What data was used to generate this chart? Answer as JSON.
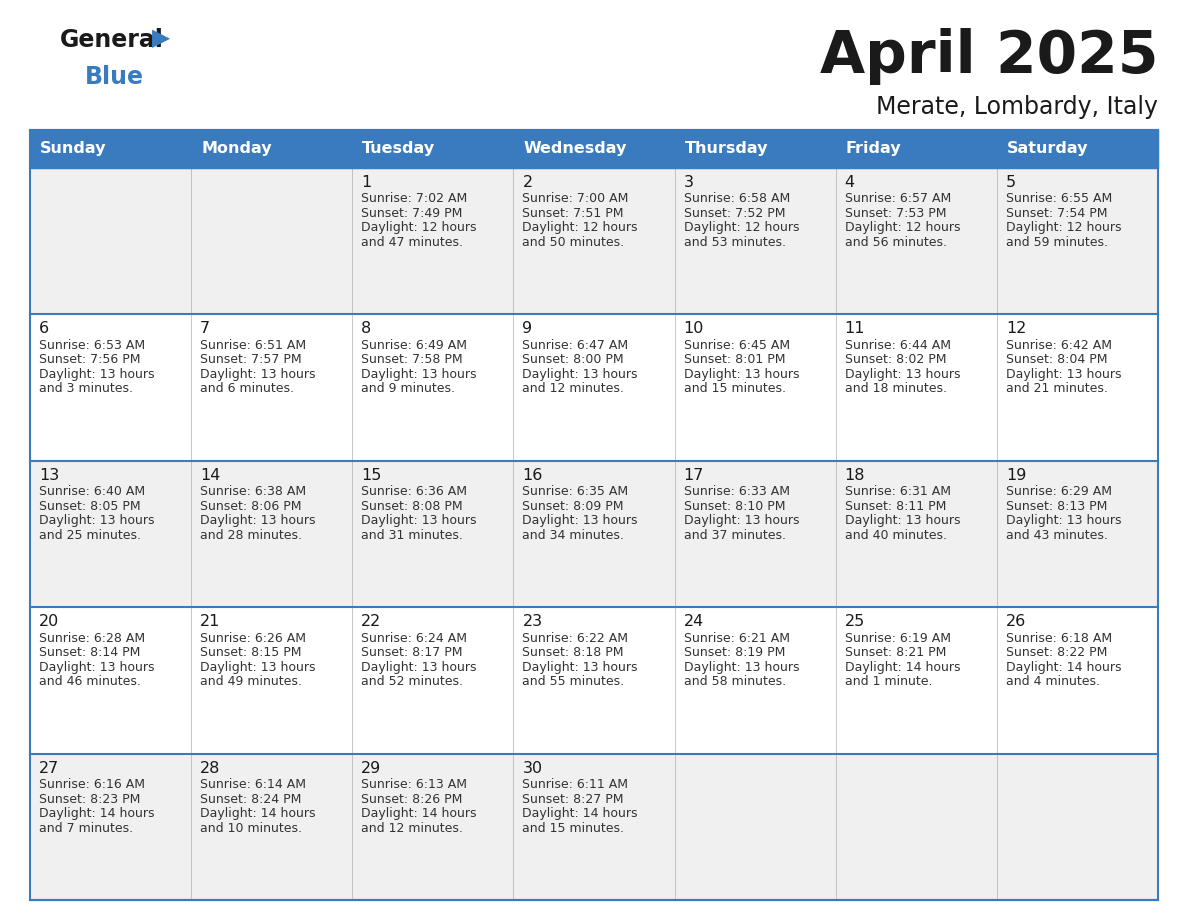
{
  "title": "April 2025",
  "subtitle": "Merate, Lombardy, Italy",
  "header_bg_color": "#3a7bbf",
  "header_text_color": "#ffffff",
  "cell_bg_even": "#f0f0f0",
  "cell_bg_odd": "#ffffff",
  "grid_line_color": "#3a7bbf",
  "day_names": [
    "Sunday",
    "Monday",
    "Tuesday",
    "Wednesday",
    "Thursday",
    "Friday",
    "Saturday"
  ],
  "title_color": "#1a1a1a",
  "subtitle_color": "#1a1a1a",
  "cell_text_color": "#333333",
  "day_num_color": "#1a1a1a",
  "logo_general_color": "#1a1a1a",
  "logo_blue_color": "#3a7bbf",
  "days": [
    {
      "date": 1,
      "col": 2,
      "row": 0,
      "sunrise": "7:02 AM",
      "sunset": "7:49 PM",
      "daylight_h": "12 hours",
      "daylight_m": "and 47 minutes."
    },
    {
      "date": 2,
      "col": 3,
      "row": 0,
      "sunrise": "7:00 AM",
      "sunset": "7:51 PM",
      "daylight_h": "12 hours",
      "daylight_m": "and 50 minutes."
    },
    {
      "date": 3,
      "col": 4,
      "row": 0,
      "sunrise": "6:58 AM",
      "sunset": "7:52 PM",
      "daylight_h": "12 hours",
      "daylight_m": "and 53 minutes."
    },
    {
      "date": 4,
      "col": 5,
      "row": 0,
      "sunrise": "6:57 AM",
      "sunset": "7:53 PM",
      "daylight_h": "12 hours",
      "daylight_m": "and 56 minutes."
    },
    {
      "date": 5,
      "col": 6,
      "row": 0,
      "sunrise": "6:55 AM",
      "sunset": "7:54 PM",
      "daylight_h": "12 hours",
      "daylight_m": "and 59 minutes."
    },
    {
      "date": 6,
      "col": 0,
      "row": 1,
      "sunrise": "6:53 AM",
      "sunset": "7:56 PM",
      "daylight_h": "13 hours",
      "daylight_m": "and 3 minutes."
    },
    {
      "date": 7,
      "col": 1,
      "row": 1,
      "sunrise": "6:51 AM",
      "sunset": "7:57 PM",
      "daylight_h": "13 hours",
      "daylight_m": "and 6 minutes."
    },
    {
      "date": 8,
      "col": 2,
      "row": 1,
      "sunrise": "6:49 AM",
      "sunset": "7:58 PM",
      "daylight_h": "13 hours",
      "daylight_m": "and 9 minutes."
    },
    {
      "date": 9,
      "col": 3,
      "row": 1,
      "sunrise": "6:47 AM",
      "sunset": "8:00 PM",
      "daylight_h": "13 hours",
      "daylight_m": "and 12 minutes."
    },
    {
      "date": 10,
      "col": 4,
      "row": 1,
      "sunrise": "6:45 AM",
      "sunset": "8:01 PM",
      "daylight_h": "13 hours",
      "daylight_m": "and 15 minutes."
    },
    {
      "date": 11,
      "col": 5,
      "row": 1,
      "sunrise": "6:44 AM",
      "sunset": "8:02 PM",
      "daylight_h": "13 hours",
      "daylight_m": "and 18 minutes."
    },
    {
      "date": 12,
      "col": 6,
      "row": 1,
      "sunrise": "6:42 AM",
      "sunset": "8:04 PM",
      "daylight_h": "13 hours",
      "daylight_m": "and 21 minutes."
    },
    {
      "date": 13,
      "col": 0,
      "row": 2,
      "sunrise": "6:40 AM",
      "sunset": "8:05 PM",
      "daylight_h": "13 hours",
      "daylight_m": "and 25 minutes."
    },
    {
      "date": 14,
      "col": 1,
      "row": 2,
      "sunrise": "6:38 AM",
      "sunset": "8:06 PM",
      "daylight_h": "13 hours",
      "daylight_m": "and 28 minutes."
    },
    {
      "date": 15,
      "col": 2,
      "row": 2,
      "sunrise": "6:36 AM",
      "sunset": "8:08 PM",
      "daylight_h": "13 hours",
      "daylight_m": "and 31 minutes."
    },
    {
      "date": 16,
      "col": 3,
      "row": 2,
      "sunrise": "6:35 AM",
      "sunset": "8:09 PM",
      "daylight_h": "13 hours",
      "daylight_m": "and 34 minutes."
    },
    {
      "date": 17,
      "col": 4,
      "row": 2,
      "sunrise": "6:33 AM",
      "sunset": "8:10 PM",
      "daylight_h": "13 hours",
      "daylight_m": "and 37 minutes."
    },
    {
      "date": 18,
      "col": 5,
      "row": 2,
      "sunrise": "6:31 AM",
      "sunset": "8:11 PM",
      "daylight_h": "13 hours",
      "daylight_m": "and 40 minutes."
    },
    {
      "date": 19,
      "col": 6,
      "row": 2,
      "sunrise": "6:29 AM",
      "sunset": "8:13 PM",
      "daylight_h": "13 hours",
      "daylight_m": "and 43 minutes."
    },
    {
      "date": 20,
      "col": 0,
      "row": 3,
      "sunrise": "6:28 AM",
      "sunset": "8:14 PM",
      "daylight_h": "13 hours",
      "daylight_m": "and 46 minutes."
    },
    {
      "date": 21,
      "col": 1,
      "row": 3,
      "sunrise": "6:26 AM",
      "sunset": "8:15 PM",
      "daylight_h": "13 hours",
      "daylight_m": "and 49 minutes."
    },
    {
      "date": 22,
      "col": 2,
      "row": 3,
      "sunrise": "6:24 AM",
      "sunset": "8:17 PM",
      "daylight_h": "13 hours",
      "daylight_m": "and 52 minutes."
    },
    {
      "date": 23,
      "col": 3,
      "row": 3,
      "sunrise": "6:22 AM",
      "sunset": "8:18 PM",
      "daylight_h": "13 hours",
      "daylight_m": "and 55 minutes."
    },
    {
      "date": 24,
      "col": 4,
      "row": 3,
      "sunrise": "6:21 AM",
      "sunset": "8:19 PM",
      "daylight_h": "13 hours",
      "daylight_m": "and 58 minutes."
    },
    {
      "date": 25,
      "col": 5,
      "row": 3,
      "sunrise": "6:19 AM",
      "sunset": "8:21 PM",
      "daylight_h": "14 hours",
      "daylight_m": "and 1 minute."
    },
    {
      "date": 26,
      "col": 6,
      "row": 3,
      "sunrise": "6:18 AM",
      "sunset": "8:22 PM",
      "daylight_h": "14 hours",
      "daylight_m": "and 4 minutes."
    },
    {
      "date": 27,
      "col": 0,
      "row": 4,
      "sunrise": "6:16 AM",
      "sunset": "8:23 PM",
      "daylight_h": "14 hours",
      "daylight_m": "and 7 minutes."
    },
    {
      "date": 28,
      "col": 1,
      "row": 4,
      "sunrise": "6:14 AM",
      "sunset": "8:24 PM",
      "daylight_h": "14 hours",
      "daylight_m": "and 10 minutes."
    },
    {
      "date": 29,
      "col": 2,
      "row": 4,
      "sunrise": "6:13 AM",
      "sunset": "8:26 PM",
      "daylight_h": "14 hours",
      "daylight_m": "and 12 minutes."
    },
    {
      "date": 30,
      "col": 3,
      "row": 4,
      "sunrise": "6:11 AM",
      "sunset": "8:27 PM",
      "daylight_h": "14 hours",
      "daylight_m": "and 15 minutes."
    }
  ]
}
